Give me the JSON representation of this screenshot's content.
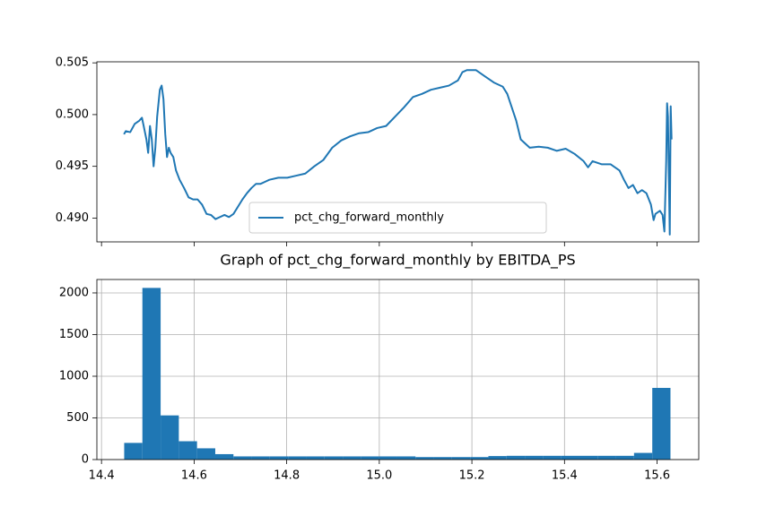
{
  "chart_data": [
    {
      "type": "line",
      "x": [
        14.4485,
        14.4524,
        14.462,
        14.4717,
        14.4814,
        14.4873,
        14.4911,
        14.497,
        14.5008,
        14.5047,
        14.5086,
        14.5125,
        14.5163,
        14.5202,
        14.526,
        14.5299,
        14.5338,
        14.5377,
        14.5415,
        14.5454,
        14.5493,
        14.5551,
        14.5609,
        14.5687,
        14.5784,
        14.5881,
        14.5978,
        14.6075,
        14.6172,
        14.6269,
        14.6366,
        14.6463,
        14.6559,
        14.6656,
        14.6753,
        14.685,
        14.6947,
        14.7044,
        14.7141,
        14.7238,
        14.7335,
        14.7432,
        14.7529,
        14.7626,
        14.782,
        14.8014,
        14.8208,
        14.8402,
        14.8595,
        14.8789,
        14.8983,
        14.9177,
        14.9371,
        14.9565,
        14.9759,
        14.9953,
        15.0147,
        15.0341,
        15.0534,
        15.0728,
        15.0922,
        15.1116,
        15.131,
        15.1504,
        15.1698,
        15.1795,
        15.1892,
        15.2086,
        15.228,
        15.2474,
        15.2667,
        15.2764,
        15.2861,
        15.2958,
        15.3055,
        15.3152,
        15.3249,
        15.3443,
        15.3637,
        15.3831,
        15.4025,
        15.4219,
        15.4413,
        15.4509,
        15.4606,
        15.48,
        15.4994,
        15.5188,
        15.5285,
        15.5382,
        15.5479,
        15.5576,
        15.5673,
        15.577,
        15.5867,
        15.5925,
        15.5964,
        15.6061,
        15.6119,
        15.6158,
        15.6197,
        15.6216,
        15.6235,
        15.6255,
        15.6274,
        15.6294,
        15.6313
      ],
      "series": [
        {
          "name": "pct_chg_forward_monthly",
          "color": "#1f77b4",
          "values": [
            0.4981,
            0.4984,
            0.4983,
            0.4991,
            0.4994,
            0.4997,
            0.4989,
            0.4976,
            0.4963,
            0.4989,
            0.4976,
            0.495,
            0.4968,
            0.4998,
            0.5024,
            0.5028,
            0.5015,
            0.4981,
            0.4959,
            0.4968,
            0.4963,
            0.4959,
            0.4946,
            0.4937,
            0.4929,
            0.492,
            0.4918,
            0.4918,
            0.4913,
            0.4904,
            0.4903,
            0.4899,
            0.4901,
            0.4903,
            0.4901,
            0.4904,
            0.4911,
            0.4918,
            0.4924,
            0.4929,
            0.4933,
            0.4933,
            0.4935,
            0.4937,
            0.4939,
            0.4939,
            0.4941,
            0.4943,
            0.495,
            0.4956,
            0.4968,
            0.4975,
            0.4979,
            0.4982,
            0.4983,
            0.4987,
            0.4989,
            0.4998,
            0.5007,
            0.5017,
            0.502,
            0.5024,
            0.5026,
            0.5028,
            0.5033,
            0.5041,
            0.5043,
            0.5043,
            0.5037,
            0.5031,
            0.5027,
            0.502,
            0.5007,
            0.4994,
            0.4976,
            0.4972,
            0.4968,
            0.4969,
            0.4968,
            0.4965,
            0.4967,
            0.4962,
            0.4955,
            0.4949,
            0.4955,
            0.4952,
            0.4952,
            0.4946,
            0.4937,
            0.4929,
            0.4932,
            0.4924,
            0.4927,
            0.4924,
            0.4913,
            0.4898,
            0.4904,
            0.4907,
            0.4903,
            0.4887,
            0.4955,
            0.5011,
            0.4998,
            0.4937,
            0.4884,
            0.5008,
            0.4976
          ]
        }
      ],
      "xlim": [
        14.39,
        15.69
      ],
      "ylim": [
        0.4877,
        0.5051
      ],
      "yticks": [
        {
          "value": 0.49,
          "label": "0.490"
        },
        {
          "value": 0.495,
          "label": "0.495"
        },
        {
          "value": 0.5,
          "label": "0.500"
        },
        {
          "value": 0.505,
          "label": "0.505"
        }
      ],
      "legend": "lower center",
      "grid": false
    },
    {
      "type": "histogram",
      "title": "Graph of pct_chg_forward_monthly by EBITDA_PS",
      "color": "#1f77b4",
      "bins": [
        14.449,
        14.4883,
        14.5277,
        14.567,
        14.6063,
        14.6457,
        14.685,
        14.7243,
        14.7636,
        14.803,
        14.8423,
        14.8816,
        14.921,
        14.9603,
        14.9996,
        15.039,
        15.0783,
        15.1176,
        15.1569,
        15.1963,
        15.2356,
        15.2749,
        15.3143,
        15.3536,
        15.3929,
        15.4323,
        15.4716,
        15.5109,
        15.5502,
        15.5896,
        15.6289
      ],
      "values": [
        200,
        2060,
        530,
        220,
        135,
        65,
        38,
        38,
        38,
        38,
        38,
        38,
        38,
        38,
        38,
        38,
        30,
        30,
        30,
        30,
        42,
        45,
        45,
        45,
        45,
        45,
        45,
        45,
        80,
        860
      ],
      "xlim": [
        14.39,
        15.69
      ],
      "ylim": [
        0,
        2161
      ],
      "xticks": [
        14.4,
        14.6,
        14.8,
        {
          "value": 15,
          "label": "15.0"
        },
        15.2,
        15.4,
        15.6
      ],
      "yticks": [
        0,
        500,
        1000,
        1500,
        2000
      ],
      "grid": true
    }
  ]
}
